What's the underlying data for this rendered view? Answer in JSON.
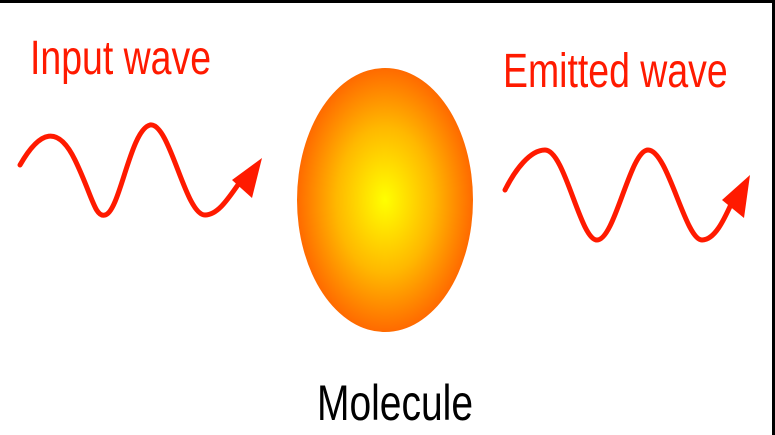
{
  "input_label": "Input wave",
  "emitted_label": "Emitted wave",
  "molecule_label": "Molecule"
}
